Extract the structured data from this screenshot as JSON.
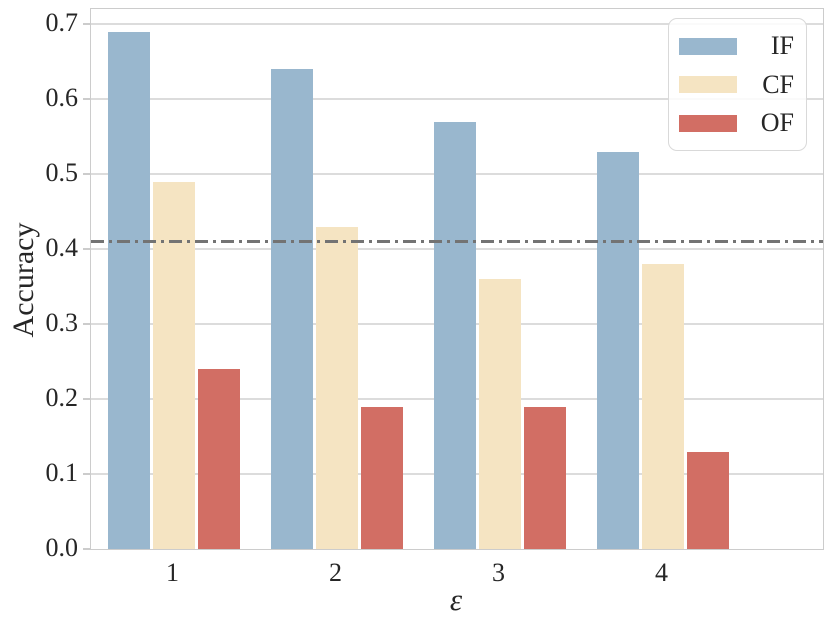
{
  "chart_data": {
    "type": "bar",
    "title": "",
    "xlabel": "ε",
    "ylabel": "Accuracy",
    "categories": [
      "1",
      "2",
      "3",
      "4"
    ],
    "series": [
      {
        "name": "IF",
        "color": "#99b7ce",
        "values": [
          0.69,
          0.64,
          0.57,
          0.53
        ]
      },
      {
        "name": "CF",
        "color": "#f5e4c2",
        "values": [
          0.49,
          0.43,
          0.36,
          0.38
        ]
      },
      {
        "name": "OF",
        "color": "#d26e64",
        "values": [
          0.24,
          0.19,
          0.19,
          0.13
        ]
      }
    ],
    "reference_line": {
      "value": 0.41,
      "style": "dash-dot",
      "color": "#737373"
    },
    "ylim": [
      0,
      0.72
    ],
    "yticks": [
      0.0,
      0.1,
      0.2,
      0.3,
      0.4,
      0.5,
      0.6,
      0.7
    ],
    "grid": true,
    "legend_position": "upper-right"
  },
  "colors": {
    "grid": "#dcdcdc",
    "spine": "#cccccc",
    "text": "#262626",
    "legend_border": "#d9d9d9"
  }
}
